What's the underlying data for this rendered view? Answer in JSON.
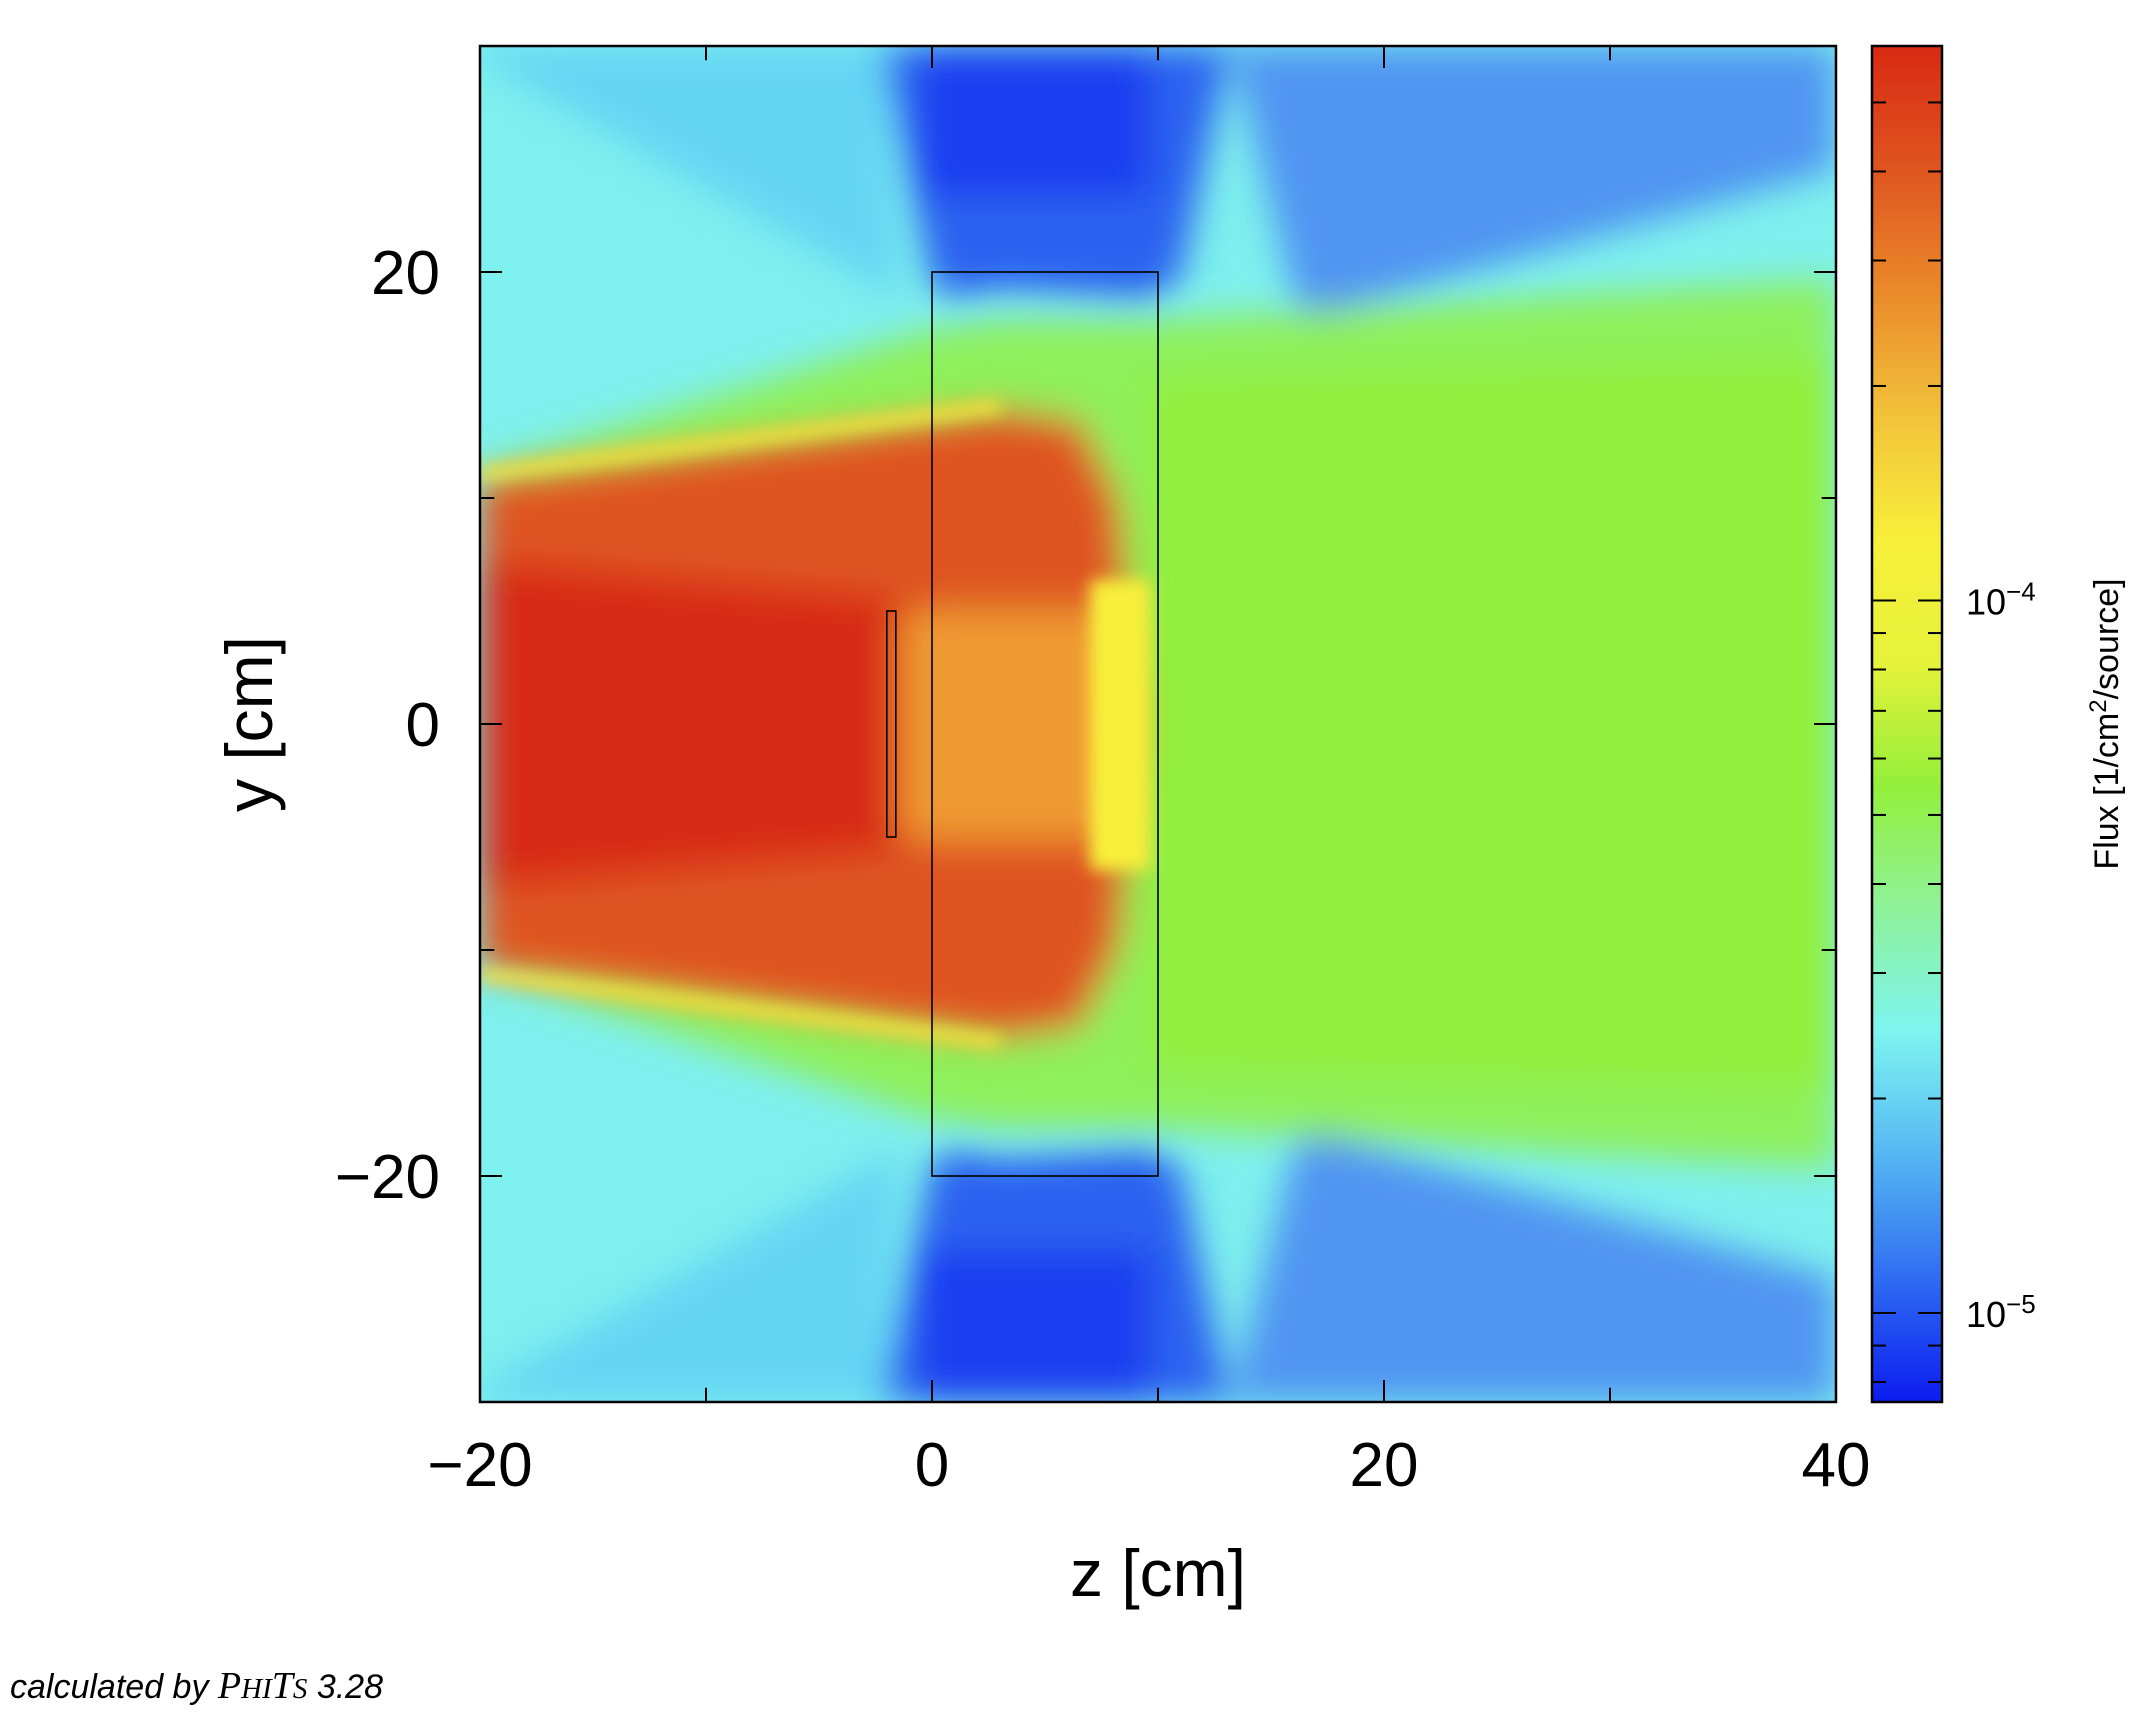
{
  "chart_data": {
    "type": "heatmap",
    "quantity": "Flux",
    "xlabel": "z [cm]",
    "ylabel": "y [cm]",
    "xlim": [
      -20,
      40
    ],
    "ylim": [
      -30,
      30
    ],
    "xticks": [
      -20,
      0,
      20,
      40
    ],
    "yticks": [
      -20,
      0,
      20
    ],
    "colorbar": {
      "label_prefix": "Flux [1/cm",
      "label_sup": "2",
      "label_suffix": "/source]",
      "scale": "log",
      "range": [
        7.5e-06,
        0.0006
      ],
      "ticks": [
        {
          "value": 0.0001,
          "base": "10",
          "exp": "−4"
        },
        {
          "value": 1e-05,
          "base": "10",
          "exp": "−5"
        }
      ],
      "colormap": [
        "#0b1cf0",
        "#2f6cf2",
        "#55b7f3",
        "#7ef4f0",
        "#8ef29a",
        "#93ef3a",
        "#e6f23a",
        "#f8ef3a",
        "#f2c23a",
        "#ea8a2a",
        "#df5520",
        "#d82a12"
      ]
    },
    "regions": [
      {
        "name": "slab",
        "z": [
          0,
          10
        ],
        "y": [
          -20,
          20
        ]
      },
      {
        "name": "source strip",
        "z": [
          -2,
          -1.6
        ],
        "y": [
          -5,
          5
        ]
      }
    ]
  },
  "footer": {
    "prefix": "calculated by ",
    "code_p": "P",
    "code_hi": "HI",
    "code_t": "T",
    "code_s": "S",
    "version": " 3.28"
  }
}
